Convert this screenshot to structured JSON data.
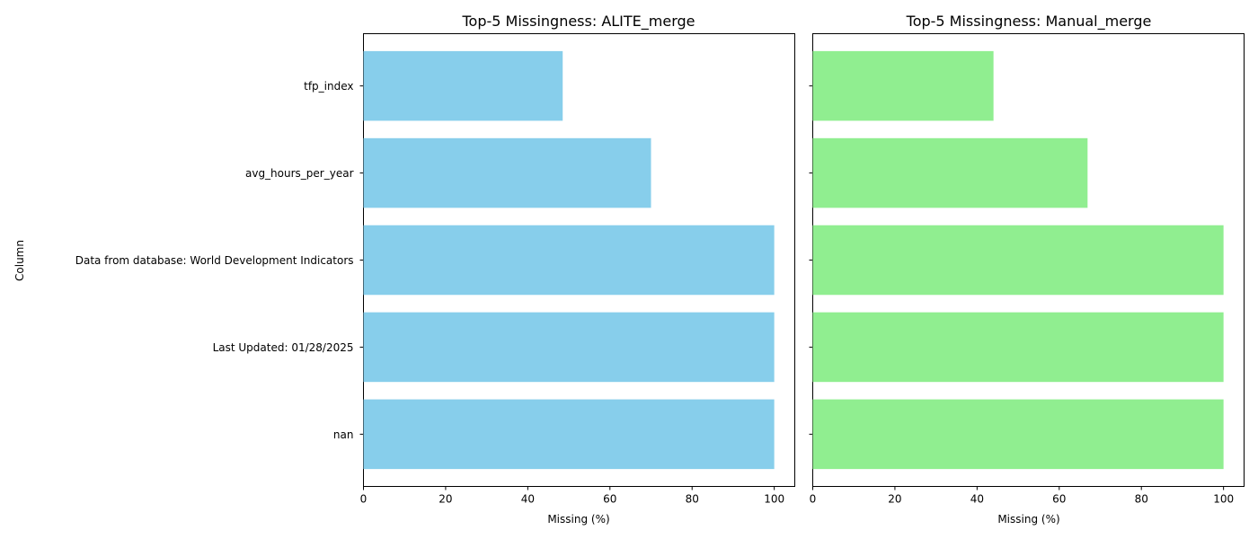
{
  "chart_data": [
    {
      "type": "bar",
      "orientation": "horizontal",
      "title": "Top-5 Missingness: ALITE_merge",
      "xlabel": "Missing (%)",
      "ylabel": "Column",
      "categories": [
        "tfp_index",
        "avg_hours_per_year",
        "Data from database: World Development Indicators",
        "Last Updated: 01/28/2025",
        "nan"
      ],
      "values": [
        48.5,
        70.0,
        100.0,
        100.0,
        100.0
      ],
      "xlim": [
        0,
        105
      ],
      "xticks": [
        0,
        20,
        40,
        60,
        80,
        100
      ],
      "color": "#87ceeb",
      "grid": false
    },
    {
      "type": "bar",
      "orientation": "horizontal",
      "title": "Top-5 Missingness: Manual_merge",
      "xlabel": "Missing (%)",
      "ylabel": "",
      "categories": [
        "tfp_index",
        "avg_hours_per_year",
        "Data from database: World Development Indicators",
        "Last Updated: 01/28/2025",
        "nan"
      ],
      "values": [
        44.0,
        66.9,
        100.0,
        100.0,
        100.0
      ],
      "xlim": [
        0,
        105
      ],
      "xticks": [
        0,
        20,
        40,
        60,
        80,
        100
      ],
      "color": "#90ee90",
      "grid": false,
      "shared_y": true
    }
  ]
}
